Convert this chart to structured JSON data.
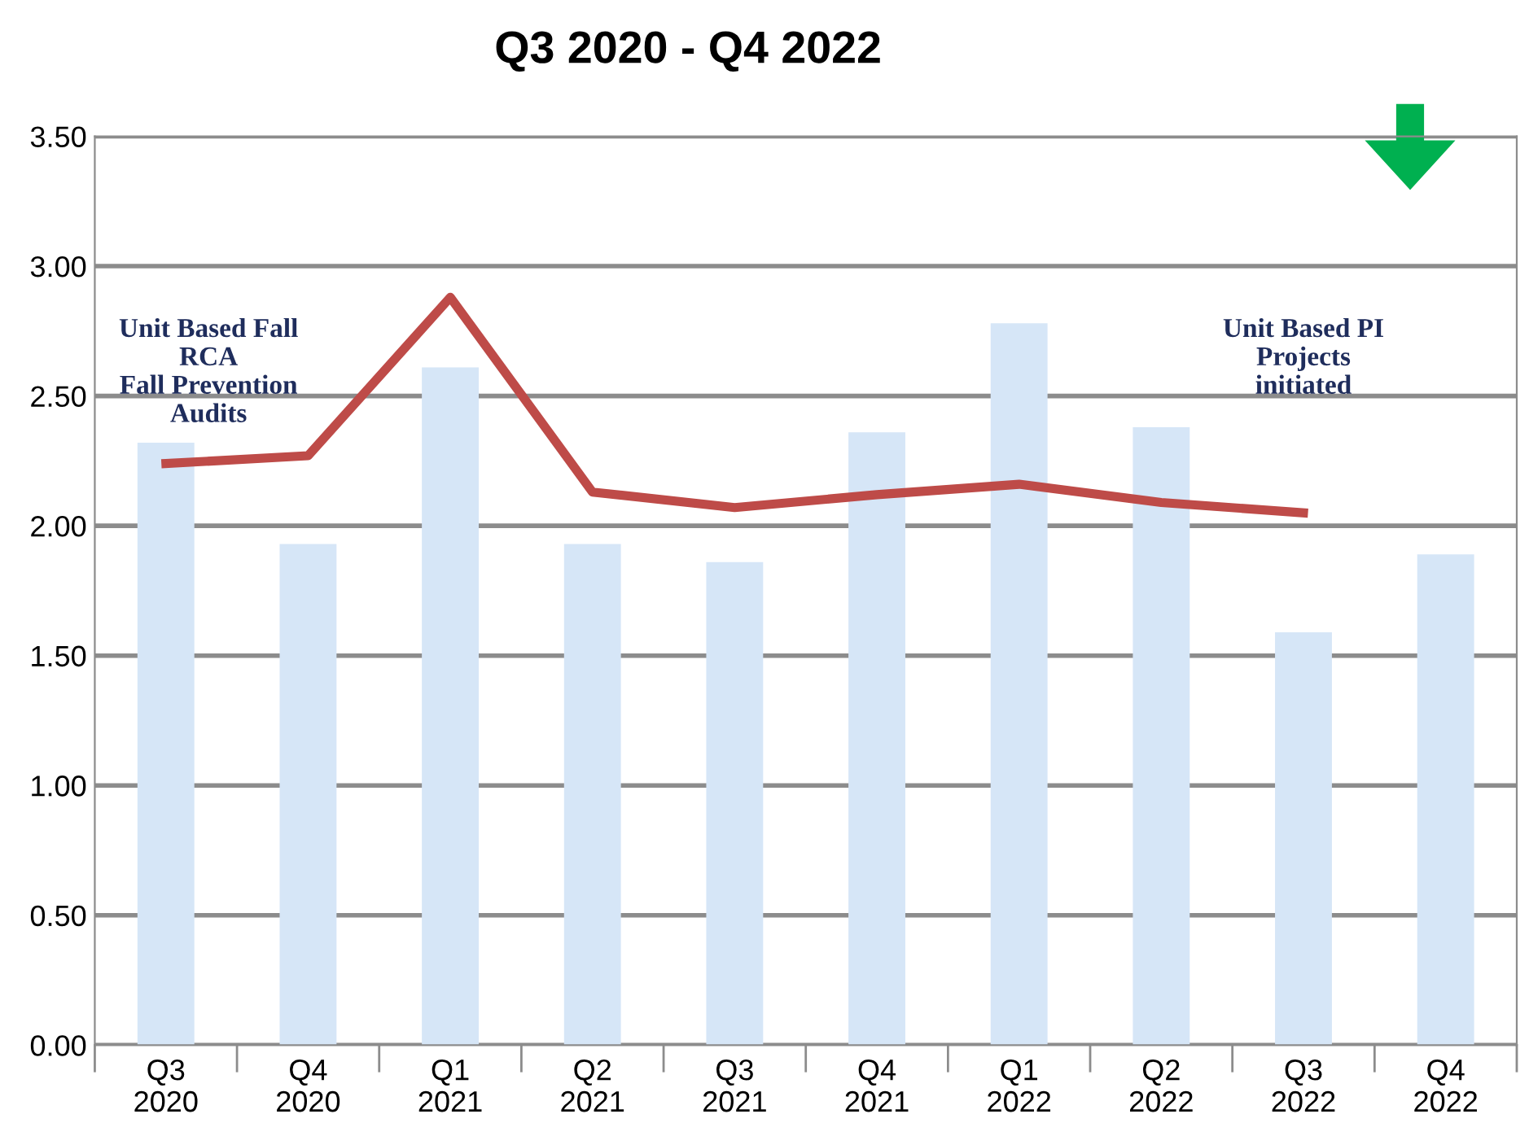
{
  "chart_data": {
    "type": "bar",
    "title": "Q3 2020 - Q4 2022",
    "categories": [
      "Q3\n2020",
      "Q4\n2020",
      "Q1\n2021",
      "Q2\n2021",
      "Q3\n2021",
      "Q4\n2021",
      "Q1\n2022",
      "Q2\n2022",
      "Q3\n2022",
      "Q4\n2022"
    ],
    "series": [
      {
        "color": "#d6e6f7",
        "values": [
          2.32,
          1.93,
          2.61,
          1.93,
          1.86,
          2.36,
          2.78,
          2.38,
          1.59,
          1.89
        ]
      },
      {
        "type": "line",
        "color": "#be4b48",
        "values": [
          2.24,
          2.27,
          2.88,
          2.13,
          2.07,
          2.12,
          2.16,
          2.09,
          2.05,
          null
        ]
      }
    ],
    "ylim": [
      0,
      3.5
    ],
    "yticks": [
      {
        "value": 0,
        "label": "0.00"
      },
      {
        "value": 0.5,
        "label": "0.50"
      },
      {
        "value": 1,
        "label": "1.00"
      },
      {
        "value": 1.5,
        "label": "1.50"
      },
      {
        "value": 2,
        "label": "2.00"
      },
      {
        "value": 2.5,
        "label": "2.50"
      },
      {
        "value": 3,
        "label": "3.00"
      },
      {
        "value": 3.5,
        "label": "3.50"
      }
    ],
    "grid": "y",
    "annotations": [
      "Unit Based Fall\nRCA\nFall Prevention\nAudits",
      "Unit Based PI\nProjects\ninitiated"
    ]
  }
}
